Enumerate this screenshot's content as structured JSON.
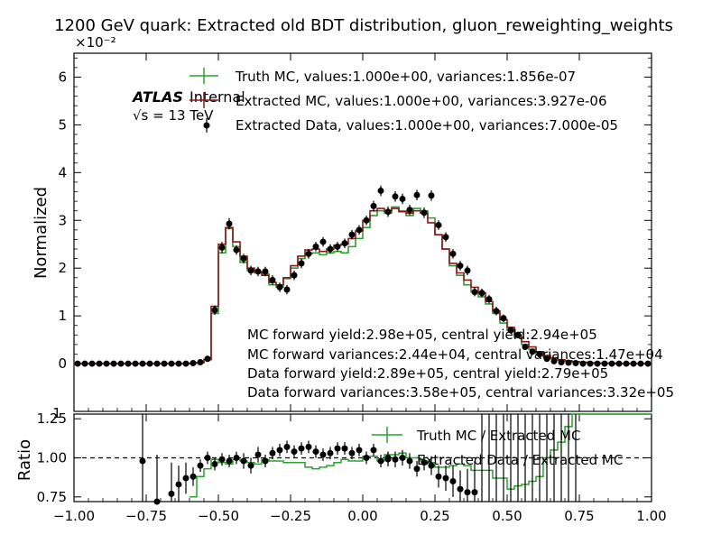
{
  "chart_data": [
    {
      "type": "line",
      "title": "1200 GeV quark: Extracted old BDT distribution, gluon_reweighting_weights",
      "ylabel": "Normalized",
      "y_exponent_label": "×10⁻²",
      "xlim": [
        -1.0,
        1.0
      ],
      "ylim": [
        -0.01,
        0.065
      ],
      "yticks": [
        0,
        0.01,
        0.02,
        0.03,
        0.04,
        0.05,
        0.06
      ],
      "ytick_labels": [
        "0",
        "1",
        "2",
        "3",
        "4",
        "5",
        "6"
      ],
      "extra_ytick_label": "1",
      "atlas_label": "ATLAS",
      "atlas_sublabel": "Internal",
      "energy_label": "√s = 13 TeV",
      "colors": {
        "truth_mc": "#2ca02c",
        "extracted_mc": "#8b1a1a",
        "data": "#000000"
      },
      "legend_position": "top-right",
      "legend": [
        "Truth MC, values:1.000e+00, variances:1.856e-07",
        "Extracted MC, values:1.000e+00, variances:3.927e-06",
        "Extracted Data, values:1.000e+00, variances:7.000e-05"
      ],
      "annotations": [
        "MC forward yield:2.98e+05, central yield:2.94e+05",
        "MC forward variances:2.44e+04, central variances:1.47e+04",
        "Data forward yield:2.89e+05, central yield:2.79e+05",
        "Data forward variances:3.58e+05, central variances:3.32e+05"
      ],
      "bin_edges_start": -1.0,
      "bin_width": 0.025,
      "series": [
        {
          "name": "Truth MC",
          "style": "step",
          "values": [
            0,
            0,
            0,
            0,
            0,
            0,
            0,
            0,
            0,
            0,
            0,
            0,
            0,
            0,
            0,
            0,
            0.0001,
            0.0002,
            0.0008,
            0.0105,
            0.0232,
            0.0283,
            0.0245,
            0.0212,
            0.0195,
            0.019,
            0.0188,
            0.0165,
            0.016,
            0.0178,
            0.02,
            0.022,
            0.023,
            0.0232,
            0.0228,
            0.0232,
            0.0235,
            0.0232,
            0.0245,
            0.0262,
            0.0285,
            0.031,
            0.032,
            0.0315,
            0.0328,
            0.032,
            0.031,
            0.0325,
            0.032,
            0.0305,
            0.027,
            0.024,
            0.0205,
            0.0185,
            0.0165,
            0.015,
            0.014,
            0.0125,
            0.0105,
            0.0085,
            0.007,
            0.0055,
            0.004,
            0.003,
            0.002,
            0.0014,
            0.001,
            0.0007,
            0.0005,
            0.0004,
            0.0003,
            0.0002,
            0.0001,
            0.0001,
            0.0001,
            0,
            0,
            0,
            0,
            0
          ]
        },
        {
          "name": "Extracted MC",
          "style": "step",
          "values": [
            0,
            0,
            0,
            0,
            0,
            0,
            0,
            0,
            0,
            0,
            0,
            0,
            0,
            0,
            0,
            0,
            0.0001,
            0.0002,
            0.0009,
            0.012,
            0.025,
            0.0285,
            0.0255,
            0.0225,
            0.02,
            0.0192,
            0.0185,
            0.017,
            0.0165,
            0.018,
            0.0205,
            0.0225,
            0.0238,
            0.024,
            0.0235,
            0.024,
            0.0248,
            0.025,
            0.0262,
            0.0278,
            0.03,
            0.032,
            0.0325,
            0.032,
            0.0325,
            0.0318,
            0.0315,
            0.032,
            0.0315,
            0.0295,
            0.027,
            0.024,
            0.021,
            0.019,
            0.0175,
            0.016,
            0.0148,
            0.013,
            0.011,
            0.0092,
            0.0076,
            0.006,
            0.0046,
            0.0035,
            0.0025,
            0.0017,
            0.0012,
            0.0008,
            0.0006,
            0.0004,
            0.0003,
            0.0002,
            0.0001,
            0.0001,
            0.0001,
            0,
            0,
            0,
            0,
            0
          ]
        },
        {
          "name": "Extracted Data",
          "style": "points",
          "values": [
            0,
            0,
            0,
            0,
            0,
            0,
            0,
            0,
            0,
            0,
            0,
            0,
            0,
            0,
            0,
            0,
            0.0001,
            0.0003,
            0.001,
            0.0112,
            0.0243,
            0.0293,
            0.0238,
            0.022,
            0.0195,
            0.0193,
            0.0193,
            0.0175,
            0.016,
            0.0155,
            0.0185,
            0.021,
            0.023,
            0.0245,
            0.0255,
            0.024,
            0.0245,
            0.0252,
            0.027,
            0.028,
            0.03,
            0.033,
            0.0362,
            0.0318,
            0.035,
            0.0345,
            0.0322,
            0.0353,
            0.0316,
            0.0352,
            0.029,
            0.0265,
            0.023,
            0.0205,
            0.0195,
            0.015,
            0.0148,
            0.0135,
            0.011,
            0.0095,
            0.007,
            0.006,
            0.0035,
            0.0025,
            0.002,
            0.001,
            0.0005,
            0.0003,
            0.0002,
            0.0001,
            0,
            0,
            0,
            0,
            0,
            0,
            0,
            0,
            0,
            0
          ],
          "errors": [
            0,
            0,
            0,
            0,
            0,
            0,
            0,
            0,
            0,
            0,
            0,
            0,
            0,
            0,
            0,
            0,
            0.0001,
            0.0002,
            0.0005,
            0.001,
            0.0012,
            0.0012,
            0.001,
            0.001,
            0.001,
            0.001,
            0.001,
            0.001,
            0.001,
            0.001,
            0.001,
            0.001,
            0.001,
            0.001,
            0.001,
            0.001,
            0.001,
            0.001,
            0.001,
            0.001,
            0.001,
            0.0011,
            0.0011,
            0.0011,
            0.0011,
            0.0011,
            0.0011,
            0.0011,
            0.0011,
            0.0011,
            0.001,
            0.001,
            0.001,
            0.001,
            0.001,
            0.0009,
            0.0009,
            0.0009,
            0.0009,
            0.0008,
            0.0007,
            0.0007,
            0.0006,
            0.0005,
            0.0005,
            0.0004,
            0.0003,
            0.0002,
            0.0002,
            0.0001,
            0,
            0,
            0,
            0,
            0,
            0,
            0,
            0,
            0,
            0
          ]
        }
      ]
    },
    {
      "type": "line",
      "ylabel": "Ratio",
      "xlim": [
        -1.0,
        1.0
      ],
      "ylim": [
        0.72,
        1.28
      ],
      "yticks": [
        0.75,
        1.0,
        1.25
      ],
      "ytick_labels": [
        "0.75",
        "1.00",
        "1.25"
      ],
      "xticks": [
        -1.0,
        -0.75,
        -0.5,
        -0.25,
        0.0,
        0.25,
        0.5,
        0.75,
        1.0
      ],
      "xtick_labels": [
        "−1.00",
        "−0.75",
        "−0.50",
        "−0.25",
        "0.00",
        "0.25",
        "0.50",
        "0.75",
        "1.00"
      ],
      "reference_line": 1.0,
      "legend_position": "top-right",
      "legend": [
        "Truth MC / Extracted MC",
        "Extracted Data / Extracted MC"
      ],
      "bin_edges_start": -1.0,
      "bin_width": 0.025,
      "series": [
        {
          "name": "Truth MC / Extracted MC",
          "style": "step",
          "x_start": -0.6,
          "values": [
            0.75,
            0.88,
            0.93,
            0.99,
            0.97,
            0.96,
            0.99,
            0.98,
            0.97,
            0.96,
            0.99,
            0.98,
            0.98,
            0.97,
            0.97,
            0.97,
            0.94,
            0.93,
            0.94,
            0.95,
            0.97,
            0.99,
            0.98,
            0.98,
            1.01,
            1.01,
            0.98,
            1.02,
            1.02,
            1.03,
            1.0,
            1.0,
            0.98,
            0.97,
            0.94,
            0.94,
            0.95,
            0.96,
            0.95,
            0.92,
            0.92,
            0.92,
            0.87,
            0.87,
            0.8,
            0.82,
            0.83,
            0.85,
            0.88,
            1.0,
            1.05,
            1.1,
            1.2,
            1.3,
            1.3,
            1.3,
            1.3,
            1.3,
            1.3,
            1.3,
            1.3,
            1.3,
            1.3,
            1.3
          ]
        },
        {
          "name": "Extracted Data / Extracted MC",
          "style": "points",
          "points": [
            [
              -0.7625,
              0.98,
              0.35
            ],
            [
              -0.7125,
              0.72,
              0.3
            ],
            [
              -0.6625,
              0.77,
              0.2
            ],
            [
              -0.6375,
              0.83,
              0.12
            ],
            [
              -0.6125,
              0.87,
              0.1
            ],
            [
              -0.5875,
              0.88,
              0.06
            ],
            [
              -0.5625,
              0.95,
              0.04
            ],
            [
              -0.5375,
              1.0,
              0.04
            ],
            [
              -0.5125,
              0.96,
              0.04
            ],
            [
              -0.4875,
              0.99,
              0.04
            ],
            [
              -0.4625,
              0.98,
              0.04
            ],
            [
              -0.4375,
              1.0,
              0.04
            ],
            [
              -0.4125,
              0.98,
              0.05
            ],
            [
              -0.3875,
              0.95,
              0.05
            ],
            [
              -0.3625,
              1.02,
              0.05
            ],
            [
              -0.3375,
              0.98,
              0.04
            ],
            [
              -0.3125,
              1.03,
              0.04
            ],
            [
              -0.2875,
              1.05,
              0.04
            ],
            [
              -0.2625,
              1.07,
              0.04
            ],
            [
              -0.2375,
              1.04,
              0.04
            ],
            [
              -0.2125,
              1.06,
              0.04
            ],
            [
              -0.1875,
              1.07,
              0.04
            ],
            [
              -0.1625,
              1.04,
              0.04
            ],
            [
              -0.1375,
              1.02,
              0.04
            ],
            [
              -0.1125,
              1.03,
              0.04
            ],
            [
              -0.0875,
              1.06,
              0.04
            ],
            [
              -0.0625,
              1.06,
              0.04
            ],
            [
              -0.0375,
              1.03,
              0.04
            ],
            [
              -0.0125,
              1.05,
              0.04
            ],
            [
              0.0125,
              1.0,
              0.04
            ],
            [
              0.0375,
              1.05,
              0.04
            ],
            [
              0.0625,
              0.98,
              0.04
            ],
            [
              0.0875,
              1.0,
              0.04
            ],
            [
              0.1125,
              0.99,
              0.05
            ],
            [
              0.1375,
              1.0,
              0.05
            ],
            [
              0.1625,
              0.98,
              0.05
            ],
            [
              0.1875,
              0.93,
              0.05
            ],
            [
              0.2125,
              0.97,
              0.05
            ],
            [
              0.2375,
              0.95,
              0.06
            ],
            [
              0.2625,
              0.88,
              0.07
            ],
            [
              0.2875,
              0.87,
              0.08
            ],
            [
              0.3125,
              0.85,
              0.1
            ],
            [
              0.3375,
              0.8,
              0.12
            ],
            [
              0.3625,
              0.78,
              0.15
            ],
            [
              0.3875,
              0.78,
              0.2
            ]
          ]
        }
      ]
    }
  ]
}
